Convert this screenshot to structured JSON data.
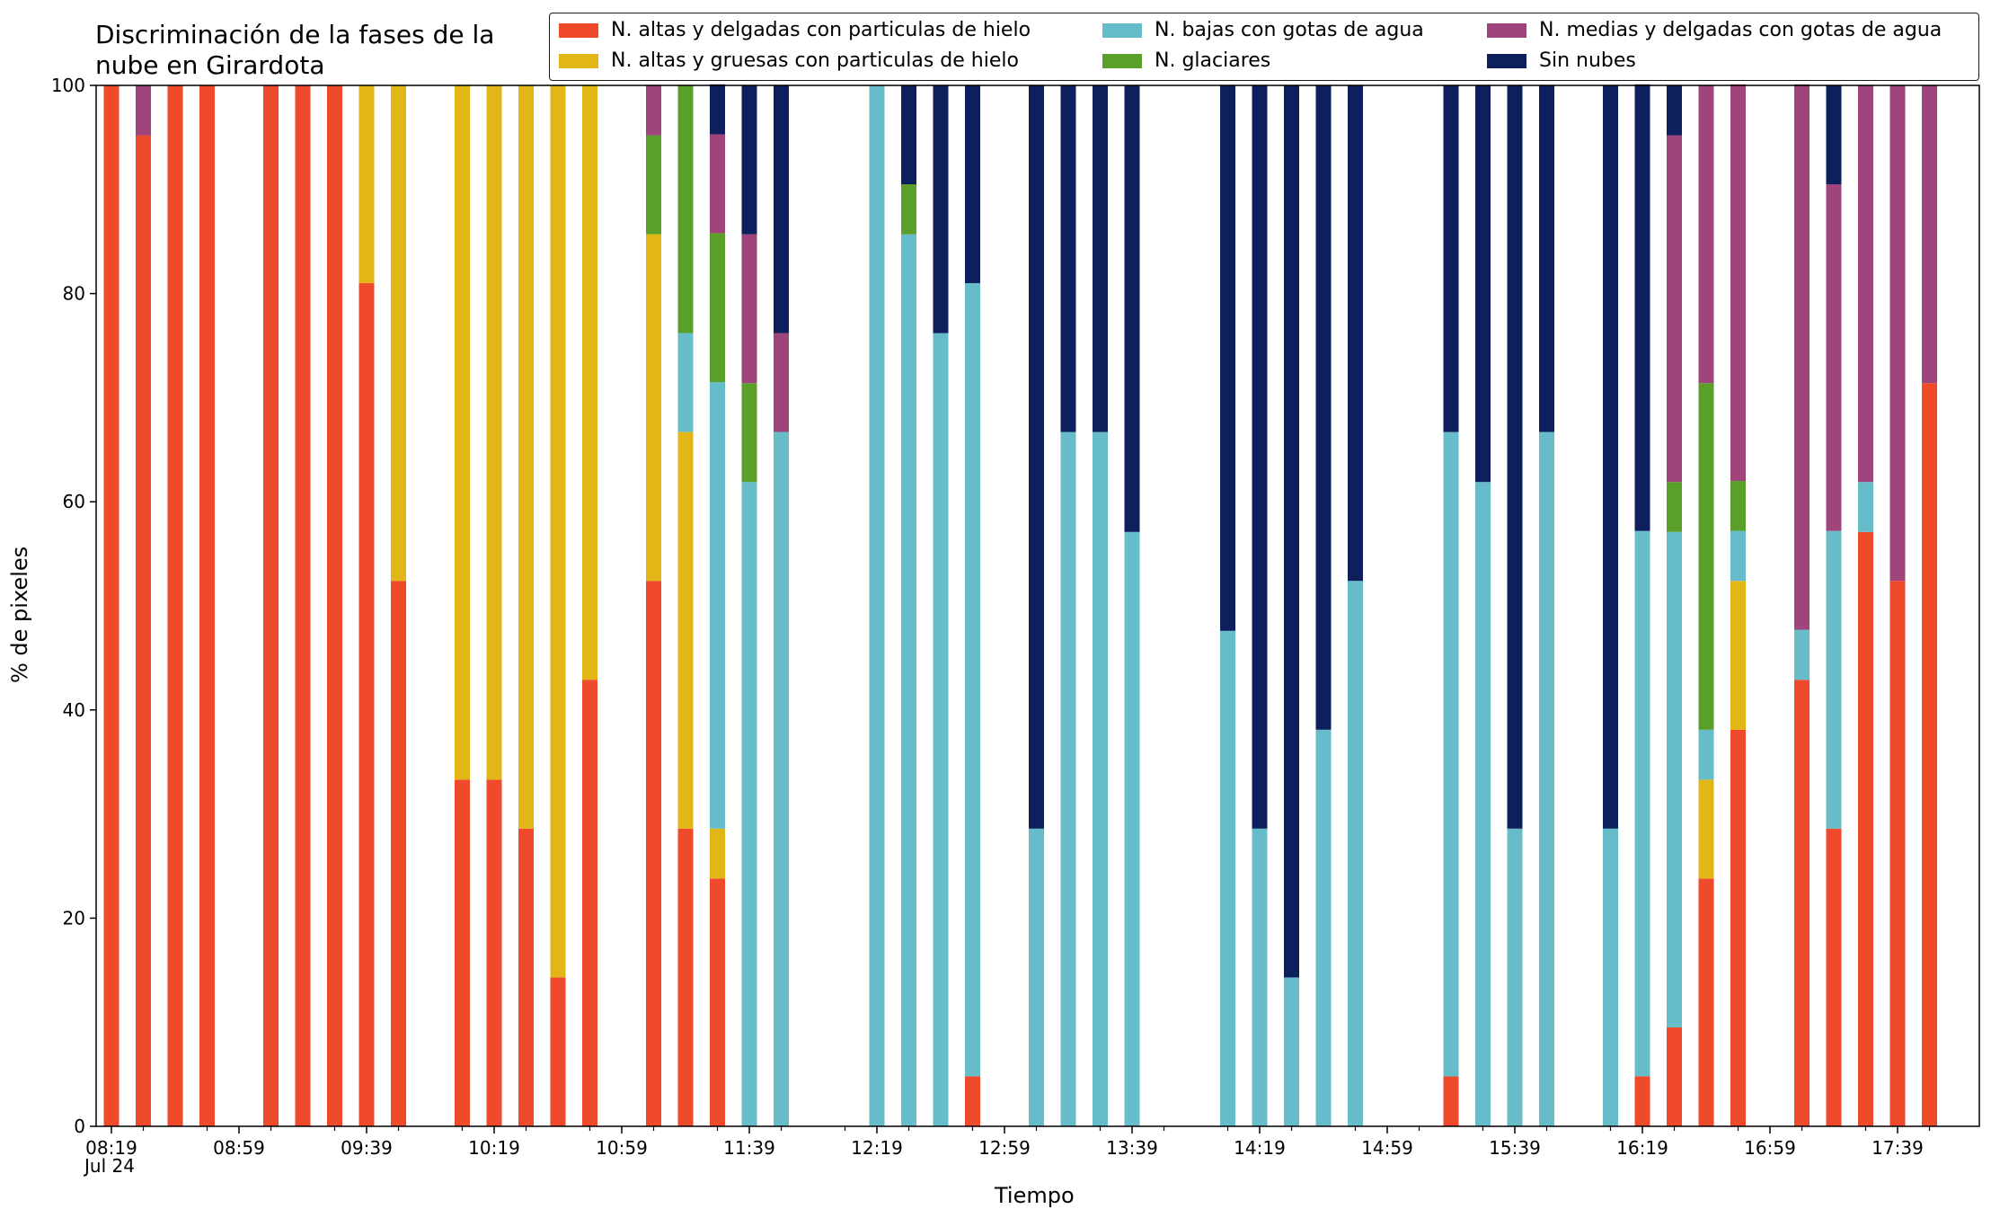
{
  "chart_data": {
    "type": "bar",
    "stacked": true,
    "title": "Discriminación de la fases de la nube en Girardota",
    "xlabel": "Tiempo",
    "ylabel": "% de pixeles",
    "ylim": [
      0,
      100
    ],
    "yticks": [
      0,
      20,
      40,
      60,
      80,
      100
    ],
    "xtick_labels": [
      "08:19",
      "08:59",
      "09:39",
      "10:19",
      "10:59",
      "11:39",
      "12:19",
      "12:59",
      "13:39",
      "14:19",
      "14:59",
      "15:39",
      "16:19",
      "16:59",
      "17:39"
    ],
    "xtick_sublabel": "Jul 24",
    "legend_position": "top-right",
    "grid": false,
    "slots": 58,
    "categories": [
      "08:19",
      "08:29",
      "08:39",
      "08:49",
      "08:59",
      "09:09",
      "09:19",
      "09:29",
      "09:39",
      "09:49",
      "09:59",
      "10:09",
      "10:19",
      "10:29",
      "10:39",
      "10:49",
      "10:59",
      "11:09",
      "11:19",
      "11:29",
      "11:39",
      "11:49",
      "11:59",
      "12:09",
      "12:19",
      "12:29",
      "12:39",
      "12:49",
      "12:59",
      "13:09",
      "13:19",
      "13:29",
      "13:39",
      "13:49",
      "13:59",
      "14:09",
      "14:19",
      "14:29",
      "14:39",
      "14:49",
      "14:59",
      "15:09",
      "15:19",
      "15:29",
      "15:39",
      "15:49",
      "15:59",
      "16:09",
      "16:19",
      "16:29",
      "16:39",
      "16:49",
      "16:59",
      "17:09",
      "17:19",
      "17:29",
      "17:39",
      "17:49"
    ],
    "series": [
      {
        "name": "N. altas y delgadas con particulas de hielo",
        "color": "#ee4a2b",
        "values": [
          100,
          95.2,
          100,
          100,
          null,
          100,
          100,
          100,
          81,
          52.4,
          null,
          33.3,
          33.3,
          28.6,
          14.3,
          42.9,
          null,
          52.4,
          28.6,
          23.8,
          0,
          0,
          null,
          null,
          0,
          0,
          0,
          4.8,
          null,
          0,
          0,
          0,
          0,
          null,
          null,
          0,
          0,
          0,
          0,
          0,
          null,
          null,
          4.8,
          0,
          0,
          0,
          null,
          0,
          4.8,
          9.5,
          23.8,
          38.1,
          null,
          42.9,
          28.6,
          57.1,
          52.4,
          71.4
        ]
      },
      {
        "name": "N. altas y gruesas con particulas de hielo",
        "color": "#e3b617",
        "values": [
          0,
          0,
          0,
          0,
          null,
          0,
          0,
          0,
          19,
          47.6,
          null,
          66.7,
          66.7,
          71.4,
          85.7,
          57.1,
          null,
          33.3,
          38.1,
          4.8,
          0,
          0,
          null,
          null,
          0,
          0,
          0,
          0,
          null,
          0,
          0,
          0,
          0,
          null,
          null,
          0,
          0,
          0,
          0,
          0,
          null,
          null,
          0,
          0,
          0,
          0,
          null,
          0,
          0,
          0,
          9.5,
          14.3,
          null,
          0,
          0,
          0,
          0,
          0
        ]
      },
      {
        "name": "N. bajas con gotas de agua",
        "color": "#66bcc8",
        "values": [
          0,
          0,
          0,
          0,
          null,
          0,
          0,
          0,
          0,
          0,
          null,
          0,
          0,
          0,
          0,
          0,
          null,
          0,
          9.5,
          42.9,
          61.9,
          66.7,
          null,
          null,
          100,
          85.7,
          76.2,
          76.2,
          null,
          28.6,
          66.7,
          66.7,
          57.1,
          null,
          null,
          47.6,
          28.6,
          14.3,
          38.1,
          52.4,
          null,
          null,
          61.9,
          61.9,
          28.6,
          66.7,
          null,
          28.6,
          52.4,
          47.6,
          4.8,
          4.8,
          null,
          4.8,
          28.6,
          4.8,
          0,
          0
        ]
      },
      {
        "name": "N. glaciares",
        "color": "#5b9f2b",
        "values": [
          0,
          0,
          0,
          0,
          null,
          0,
          0,
          0,
          0,
          0,
          null,
          0,
          0,
          0,
          0,
          0,
          null,
          9.5,
          23.8,
          14.3,
          9.5,
          0,
          null,
          null,
          0,
          4.8,
          0,
          0,
          null,
          0,
          0,
          0,
          0,
          null,
          null,
          0,
          0,
          0,
          0,
          0,
          null,
          null,
          0,
          0,
          0,
          0,
          null,
          0,
          0,
          4.8,
          33.3,
          4.8,
          null,
          0,
          0,
          0,
          0,
          0
        ]
      },
      {
        "name": "N. medias y delgadas con gotas de agua",
        "color": "#a0457b",
        "values": [
          0,
          4.8,
          0,
          0,
          null,
          0,
          0,
          0,
          0,
          0,
          null,
          0,
          0,
          0,
          0,
          0,
          null,
          4.8,
          0,
          9.5,
          14.3,
          9.5,
          null,
          null,
          0,
          0,
          0,
          0,
          null,
          0,
          0,
          0,
          0,
          null,
          null,
          0,
          0,
          0,
          0,
          0,
          null,
          null,
          0,
          0,
          0,
          0,
          null,
          0,
          0,
          33.3,
          28.6,
          38.1,
          null,
          52.4,
          33.3,
          38.1,
          47.6,
          28.6
        ]
      },
      {
        "name": "Sin nubes",
        "color": "#0d1f5c",
        "values": [
          0,
          0,
          0,
          0,
          null,
          0,
          0,
          0,
          0,
          0,
          null,
          0,
          0,
          0,
          0,
          0,
          null,
          0,
          0,
          4.8,
          14.3,
          23.8,
          null,
          null,
          0,
          9.5,
          23.8,
          19,
          null,
          71.4,
          33.3,
          33.3,
          42.9,
          null,
          null,
          52.4,
          71.4,
          85.7,
          61.9,
          47.6,
          null,
          null,
          33.3,
          38.1,
          71.4,
          33.3,
          null,
          71.4,
          42.9,
          4.8,
          0,
          0,
          null,
          0,
          9.5,
          0,
          0,
          0
        ]
      }
    ]
  }
}
